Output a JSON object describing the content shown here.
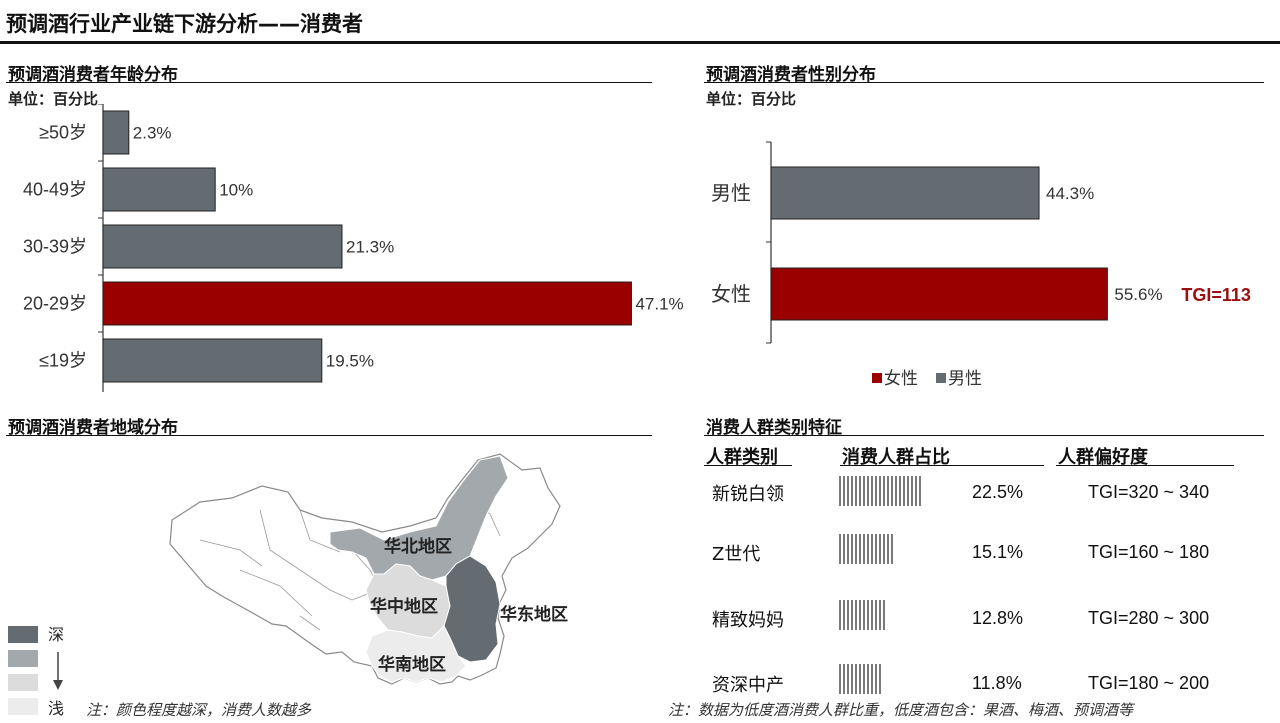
{
  "page": {
    "title": "预调酒行业产业链下游分析——消费者"
  },
  "colors": {
    "grey_bar": "#646c71",
    "red_bar": "#9a0000",
    "region_dark": "#646c71",
    "region_mid": "#a3a8ac",
    "region_light": "#dcdcdc",
    "region_lightest": "#ececec",
    "tgi_red": "#9a1010"
  },
  "age_chart": {
    "title": "预调酒消费者年龄分布",
    "unit": "单位：百分比"
  },
  "gender_chart": {
    "title": "预调酒消费者性别分布",
    "unit": "单位：百分比",
    "tgi_label": "TGI=113",
    "legend": [
      "女性",
      "男性"
    ]
  },
  "region_map": {
    "title": "预调酒消费者地域分布",
    "regions": [
      "华北地区",
      "华中地区",
      "华东地区",
      "华南地区"
    ],
    "legend_top": "深",
    "legend_bottom": "浅",
    "note": "注：颜色程度越深，消费人数越多"
  },
  "segments": {
    "title": "消费人群类别特征",
    "headers": [
      "人群类别",
      "消费人群占比",
      "人群偏好度"
    ],
    "rows": [
      {
        "name": "新锐白领",
        "share": "22.5%",
        "tgi": "TGI=320 ~ 340"
      },
      {
        "name": "Z世代",
        "share": "15.1%",
        "tgi": "TGI=160 ~ 180"
      },
      {
        "name": "精致妈妈",
        "share": "12.8%",
        "tgi": "TGI=280 ~ 300"
      },
      {
        "name": "资深中产",
        "share": "11.8%",
        "tgi": "TGI=180 ~ 200"
      }
    ],
    "note": "注：数据为低度酒消费人群比重，低度酒包含：果酒、梅酒、预调酒等"
  },
  "chart_data": [
    {
      "type": "bar",
      "orientation": "horizontal",
      "title": "预调酒消费者年龄分布",
      "categories": [
        "≥50岁",
        "40-49岁",
        "30-39岁",
        "20-29岁",
        "≤19岁"
      ],
      "values": [
        2.3,
        10,
        21.3,
        47.1,
        19.5
      ],
      "labels": [
        "2.3%",
        "10%",
        "21.3%",
        "47.1%",
        "19.5%"
      ],
      "highlight": "20-29岁",
      "xlim": [
        0,
        48
      ]
    },
    {
      "type": "bar",
      "orientation": "horizontal",
      "title": "预调酒消费者性别分布",
      "categories": [
        "男性",
        "女性"
      ],
      "values": [
        44.3,
        55.6
      ],
      "labels": [
        "44.3%",
        "55.6%"
      ],
      "legend": [
        "女性",
        "男性"
      ],
      "legend_position": "bottom",
      "xlim": [
        0,
        60
      ]
    },
    {
      "type": "bar",
      "title": "消费人群类别特征",
      "categories": [
        "新锐白领",
        "Z世代",
        "精致妈妈",
        "资深中产"
      ],
      "values": [
        22.5,
        15.1,
        12.8,
        11.8
      ],
      "labels": [
        "22.5%",
        "15.1%",
        "12.8%",
        "11.8%"
      ]
    }
  ]
}
